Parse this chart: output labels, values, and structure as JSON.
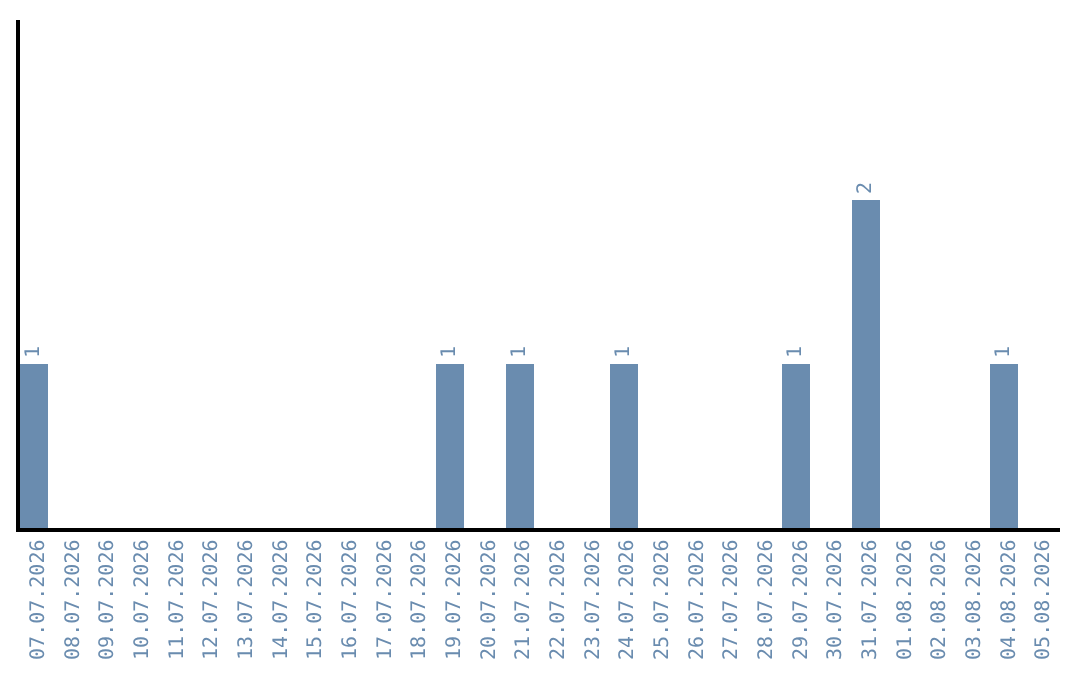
{
  "chart_data": {
    "type": "bar",
    "categories": [
      "07.07.2026",
      "08.07.2026",
      "09.07.2026",
      "10.07.2026",
      "11.07.2026",
      "12.07.2026",
      "13.07.2026",
      "14.07.2026",
      "15.07.2026",
      "16.07.2026",
      "17.07.2026",
      "18.07.2026",
      "19.07.2026",
      "20.07.2026",
      "21.07.2026",
      "22.07.2026",
      "23.07.2026",
      "24.07.2026",
      "25.07.2026",
      "26.07.2026",
      "27.07.2026",
      "28.07.2026",
      "29.07.2026",
      "30.07.2026",
      "31.07.2026",
      "01.08.2026",
      "02.08.2026",
      "03.08.2026",
      "04.08.2026",
      "05.08.2026"
    ],
    "values": [
      1,
      0,
      0,
      0,
      0,
      0,
      0,
      0,
      0,
      0,
      0,
      0,
      1,
      0,
      1,
      0,
      0,
      1,
      0,
      0,
      0,
      0,
      1,
      0,
      2,
      0,
      0,
      0,
      1,
      0
    ],
    "value_labels": [
      "1",
      null,
      null,
      null,
      null,
      null,
      null,
      null,
      null,
      null,
      null,
      null,
      "1",
      null,
      "1",
      null,
      null,
      "1",
      null,
      null,
      null,
      null,
      "1",
      null,
      "2",
      null,
      null,
      null,
      "1",
      null
    ],
    "color": "#6a8caf",
    "ylim": [
      0,
      3.1
    ],
    "tick_labels": "x",
    "legend": false
  }
}
